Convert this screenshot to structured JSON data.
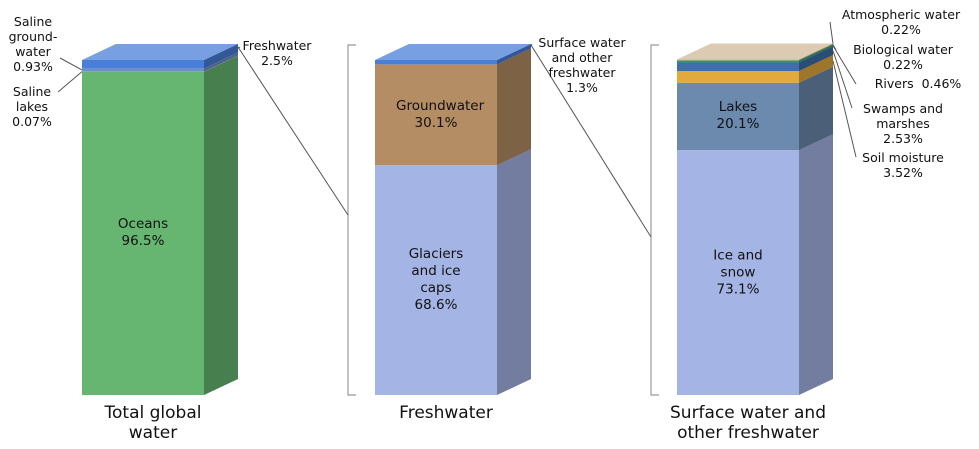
{
  "chart_data": [
    {
      "type": "stacked-bar",
      "title": "Total global water",
      "ylim": [
        0,
        100
      ],
      "series": [
        {
          "name": "Oceans",
          "color": "#66b672",
          "values": [
            96.5
          ],
          "value_labels": [
            "96.5%"
          ]
        },
        {
          "name": "Saline lakes",
          "color": "#9aa5a0",
          "values": [
            0.07
          ],
          "value_labels": [
            "0.07%"
          ]
        },
        {
          "name": "Saline ground-water",
          "color": "#6f8fc8",
          "values": [
            0.93
          ],
          "value_labels": [
            "0.93%"
          ]
        },
        {
          "name": "Freshwater",
          "color": "#4a7fd8",
          "values": [
            2.5
          ],
          "value_labels": [
            "2.5%"
          ]
        }
      ]
    },
    {
      "type": "stacked-bar",
      "title": "Freshwater",
      "ylim": [
        0,
        100
      ],
      "series": [
        {
          "name": "Glaciers and ice caps",
          "color": "#a4b4e4",
          "values": [
            68.6
          ],
          "value_labels": [
            "68.6%"
          ]
        },
        {
          "name": "Groundwater",
          "color": "#b58d64",
          "values": [
            30.1
          ],
          "value_labels": [
            "30.1%"
          ]
        },
        {
          "name": "Surface water and other freshwater",
          "color": "#4a7fd8",
          "values": [
            1.3
          ],
          "value_labels": [
            "1.3%"
          ]
        }
      ]
    },
    {
      "type": "stacked-bar",
      "title": "Surface water and other freshwater",
      "ylim": [
        0,
        100
      ],
      "series": [
        {
          "name": "Ice and snow",
          "color": "#a4b4e4",
          "values": [
            73.1
          ],
          "value_labels": [
            "73.1%"
          ]
        },
        {
          "name": "Lakes",
          "color": "#6c89ae",
          "values": [
            20.1
          ],
          "value_labels": [
            "20.1%"
          ]
        },
        {
          "name": "Soil moisture",
          "color": "#e2a93c",
          "values": [
            3.52
          ],
          "value_labels": [
            "3.52%"
          ]
        },
        {
          "name": "Swamps and marshes",
          "color": "#3d6fa8",
          "values": [
            2.53
          ],
          "value_labels": [
            "2.53%"
          ]
        },
        {
          "name": "Rivers",
          "color": "#2f9a6a",
          "values": [
            0.46
          ],
          "value_labels": [
            "0.46%"
          ]
        },
        {
          "name": "Biological water",
          "color": "#4f8a5a",
          "values": [
            0.22
          ],
          "value_labels": [
            "0.22%"
          ]
        },
        {
          "name": "Atmospheric water",
          "color": "#d2b89a",
          "values": [
            0.22
          ],
          "value_labels": [
            "0.22%"
          ]
        }
      ]
    }
  ]
}
